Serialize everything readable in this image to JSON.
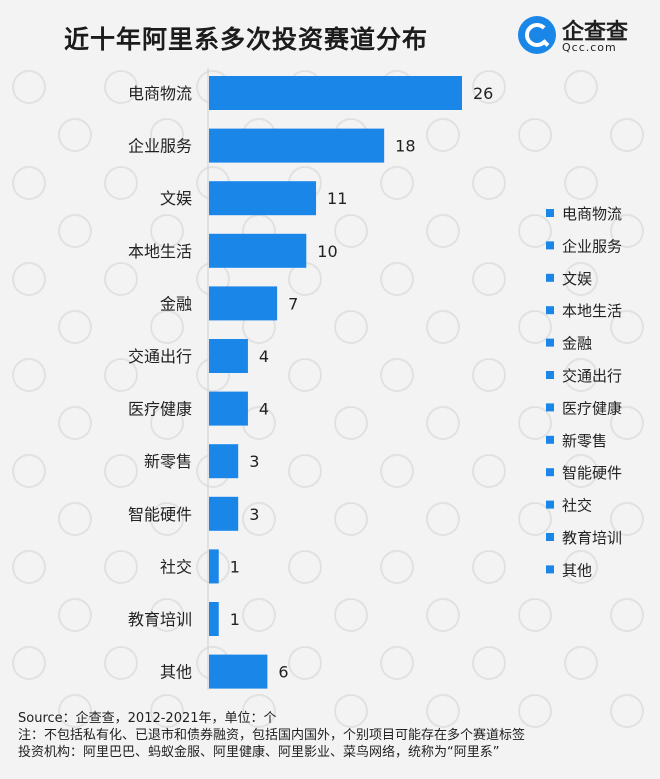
{
  "title": "近十年阿里系多次投资赛道分布",
  "logo": {
    "name": "企查查",
    "sub": "Qcc.com",
    "watermark": "企查查"
  },
  "colors": {
    "bar": "#1a86e8",
    "text": "#222222",
    "background": "#f3f3f3"
  },
  "chart_data": {
    "type": "bar",
    "orientation": "horizontal",
    "title": "近十年阿里系多次投资赛道分布",
    "categories": [
      "电商物流",
      "企业服务",
      "文娱",
      "本地生活",
      "金融",
      "交通出行",
      "医疗健康",
      "新零售",
      "智能硬件",
      "社交",
      "教育培训",
      "其他"
    ],
    "values": [
      26,
      18,
      11,
      10,
      7,
      4,
      4,
      3,
      3,
      1,
      1,
      6
    ],
    "xlim": [
      0,
      26
    ],
    "grid": false,
    "legend": {
      "placement": "right",
      "entries": [
        "电商物流",
        "企业服务",
        "文娱",
        "本地生活",
        "金融",
        "交通出行",
        "医疗健康",
        "新零售",
        "智能硬件",
        "社交",
        "教育培训",
        "其他"
      ]
    }
  },
  "footer": {
    "source": "Source：企查查，2012-2021年，单位：个",
    "note": "注：不包括私有化、已退市和债券融资，包括国内国外，个别项目可能存在多个赛道标签",
    "investors": "投资机构：阿里巴巴、蚂蚁金服、阿里健康、阿里影业、菜鸟网络，统称为“阿里系”"
  }
}
